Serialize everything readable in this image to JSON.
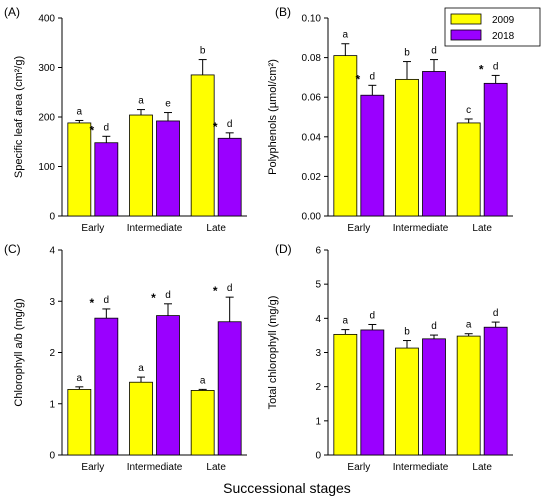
{
  "figure": {
    "xlabel": "Successional stages",
    "legend": {
      "entries": [
        {
          "label": "2009",
          "color": "#FFFF00"
        },
        {
          "label": "2018",
          "color": "#9A00FF"
        }
      ],
      "placement": "top-right of panel B"
    }
  },
  "chart_data": [
    {
      "type": "bar",
      "panel_label": "(A)",
      "title": "",
      "xlabel": "",
      "ylabel": "Specific leaf area (cm²/g)",
      "categories": [
        "Early",
        "Intermediate",
        "Late"
      ],
      "ylim": [
        0,
        400
      ],
      "yticks": [
        0,
        100,
        200,
        300,
        400
      ],
      "ytick_labels": [
        "0",
        "100",
        "200",
        "300",
        "400"
      ],
      "series": [
        {
          "name": "2009",
          "color": "#FFFF00",
          "values": [
            188,
            204,
            285
          ],
          "errors": [
            5,
            11,
            31
          ],
          "letters": [
            "a",
            "a",
            "b"
          ]
        },
        {
          "name": "2018",
          "color": "#9A00FF",
          "values": [
            148,
            192,
            157
          ],
          "errors": [
            13,
            17,
            11
          ],
          "letters": [
            "d",
            "e",
            "d"
          ]
        }
      ],
      "stars": [
        true,
        false,
        true
      ]
    },
    {
      "type": "bar",
      "panel_label": "(B)",
      "title": "",
      "xlabel": "",
      "ylabel": "Polyphenols (µmol/cm²)",
      "categories": [
        "Early",
        "Intermediate",
        "Late"
      ],
      "ylim": [
        0,
        0.1
      ],
      "yticks": [
        0,
        0.02,
        0.04,
        0.06,
        0.08,
        0.1
      ],
      "ytick_labels": [
        "0.00",
        "0.02",
        "0.04",
        "0.06",
        "0.08",
        "0.10"
      ],
      "series": [
        {
          "name": "2009",
          "color": "#FFFF00",
          "values": [
            0.081,
            0.069,
            0.047
          ],
          "errors": [
            0.006,
            0.009,
            0.002
          ],
          "letters": [
            "a",
            "b",
            "c"
          ]
        },
        {
          "name": "2018",
          "color": "#9A00FF",
          "values": [
            0.061,
            0.073,
            0.067
          ],
          "errors": [
            0.005,
            0.006,
            0.004
          ],
          "letters": [
            "d",
            "d",
            "d"
          ]
        }
      ],
      "stars": [
        true,
        false,
        true
      ]
    },
    {
      "type": "bar",
      "panel_label": "(C)",
      "title": "",
      "xlabel": "",
      "ylabel": "Chlorophyll a/b (mg/g)",
      "categories": [
        "Early",
        "Intermediate",
        "Late"
      ],
      "ylim": [
        0,
        4
      ],
      "yticks": [
        0,
        1,
        2,
        3,
        4
      ],
      "ytick_labels": [
        "0",
        "1",
        "2",
        "3",
        "4"
      ],
      "series": [
        {
          "name": "2009",
          "color": "#FFFF00",
          "values": [
            1.28,
            1.42,
            1.26
          ],
          "errors": [
            0.05,
            0.1,
            0.02
          ],
          "letters": [
            "a",
            "a",
            "a"
          ]
        },
        {
          "name": "2018",
          "color": "#9A00FF",
          "values": [
            2.67,
            2.72,
            2.6
          ],
          "errors": [
            0.18,
            0.23,
            0.48
          ],
          "letters": [
            "d",
            "d",
            "d"
          ]
        }
      ],
      "stars": [
        true,
        true,
        true
      ]
    },
    {
      "type": "bar",
      "panel_label": "(D)",
      "title": "",
      "xlabel": "",
      "ylabel": "Total chlorophyll (mg/g)",
      "categories": [
        "Early",
        "Intermediate",
        "Late"
      ],
      "ylim": [
        0,
        6
      ],
      "yticks": [
        0,
        1,
        2,
        3,
        4,
        5,
        6
      ],
      "ytick_labels": [
        "0",
        "1",
        "2",
        "3",
        "4",
        "5",
        "6"
      ],
      "series": [
        {
          "name": "2009",
          "color": "#FFFF00",
          "values": [
            3.53,
            3.13,
            3.48
          ],
          "errors": [
            0.14,
            0.22,
            0.07
          ],
          "letters": [
            "a",
            "b",
            "a"
          ]
        },
        {
          "name": "2018",
          "color": "#9A00FF",
          "values": [
            3.66,
            3.4,
            3.74
          ],
          "errors": [
            0.16,
            0.11,
            0.15
          ],
          "letters": [
            "d",
            "d",
            "d"
          ]
        }
      ],
      "stars": [
        false,
        false,
        false
      ]
    }
  ]
}
